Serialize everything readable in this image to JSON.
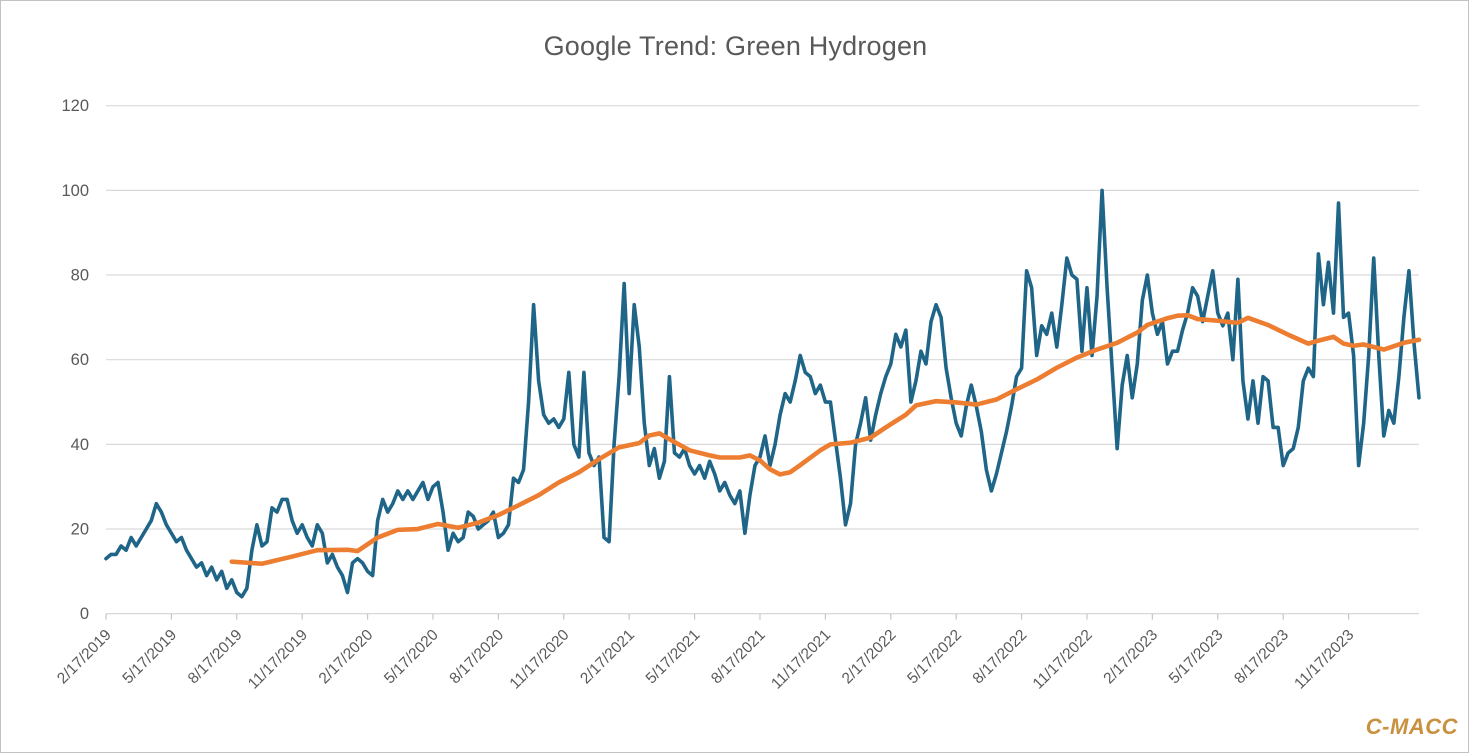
{
  "header": {
    "title": "Google Trend: Green Hydrogen"
  },
  "branding": {
    "logo_text": "C-MACC",
    "logo_color": "#c8913f"
  },
  "colors": {
    "title_text": "#595959",
    "axis_text": "#595959",
    "gridline": "#d9d9d9",
    "axis_line": "#d2d2d2",
    "tick_mark": "#c6c6c6",
    "weekly_line": "#1f6587",
    "trend_line": "#ed7d31",
    "frame_border": "#c2c2c2"
  },
  "chart_data": {
    "type": "line",
    "title": "Google Trend: Green Hydrogen",
    "xlabel": "",
    "ylabel": "",
    "ylim": [
      0,
      120
    ],
    "y_ticks": [
      0,
      20,
      40,
      60,
      80,
      100,
      120
    ],
    "grid": "horizontal",
    "legend": "none",
    "x_unit": "weeks",
    "x_tick_every_weeks": 13,
    "x_tick_labels": [
      "2/17/2019",
      "5/17/2019",
      "8/17/2019",
      "11/17/2019",
      "2/17/2020",
      "5/17/2020",
      "8/17/2020",
      "11/17/2020",
      "2/17/2021",
      "5/17/2021",
      "8/17/2021",
      "11/17/2021",
      "2/17/2022",
      "5/17/2022",
      "8/17/2022",
      "11/17/2022",
      "2/17/2023",
      "5/17/2023",
      "8/17/2023",
      "11/17/2023"
    ],
    "x_tick_label_rotation_deg": -45,
    "series": [
      {
        "name": "weekly_search_interest",
        "color": "#1f6587",
        "width": 3.6,
        "values": [
          13,
          14,
          14,
          16,
          15,
          18,
          16,
          18,
          20,
          22,
          26,
          24,
          21,
          19,
          17,
          18,
          15,
          13,
          11,
          12,
          9,
          11,
          8,
          10,
          6,
          8,
          5,
          4,
          6,
          15,
          21,
          16,
          17,
          25,
          24,
          27,
          27,
          22,
          19,
          21,
          18,
          16,
          21,
          19,
          12,
          14,
          11,
          9,
          5,
          12,
          13,
          12,
          10,
          9,
          22,
          27,
          24,
          26,
          29,
          27,
          29,
          27,
          29,
          31,
          27,
          30,
          31,
          24,
          15,
          19,
          17,
          18,
          24,
          23,
          20,
          21,
          22,
          24,
          18,
          19,
          21,
          32,
          31,
          34,
          50,
          73,
          55,
          47,
          45,
          46,
          44,
          46,
          57,
          40,
          37,
          57,
          38,
          35,
          37,
          18,
          17,
          40,
          56,
          78,
          52,
          73,
          63,
          45,
          35,
          39,
          32,
          36,
          56,
          38,
          37,
          39,
          35,
          33,
          35,
          32,
          36,
          33,
          29,
          31,
          28,
          26,
          29,
          19,
          28,
          35,
          37,
          42,
          35,
          40,
          47,
          52,
          50,
          55,
          61,
          57,
          56,
          52,
          54,
          50,
          50,
          41,
          32,
          21,
          26,
          40,
          45,
          51,
          41,
          47,
          52,
          56,
          59,
          66,
          63,
          67,
          50,
          55,
          62,
          59,
          69,
          73,
          70,
          58,
          51,
          45,
          42,
          49,
          54,
          49,
          43,
          34,
          29,
          33,
          38,
          43,
          49,
          56,
          58,
          81,
          77,
          61,
          68,
          66,
          71,
          63,
          73,
          84,
          80,
          79,
          62,
          77,
          61,
          75,
          100,
          77,
          58,
          39,
          54,
          61,
          51,
          59,
          74,
          80,
          71,
          66,
          69,
          59,
          62,
          62,
          67,
          71,
          77,
          75,
          69,
          75,
          81,
          71,
          68,
          71,
          60,
          79,
          55,
          46,
          55,
          45,
          56,
          55,
          44,
          44,
          35,
          38,
          39,
          44,
          55,
          58,
          56,
          85,
          73,
          83,
          71,
          97,
          70,
          71,
          61,
          35,
          45,
          61,
          84,
          61,
          42,
          48,
          45,
          56,
          70,
          81,
          64,
          51
        ]
      },
      {
        "name": "smoothed_trend_moving_average",
        "color": "#ed7d31",
        "width": 4.6,
        "points": [
          [
            25,
            12.3
          ],
          [
            31,
            11.8
          ],
          [
            37,
            13.5
          ],
          [
            42,
            15
          ],
          [
            48,
            15.1
          ],
          [
            50,
            14.8
          ],
          [
            54,
            18
          ],
          [
            58,
            19.8
          ],
          [
            62,
            20
          ],
          [
            66,
            21.2
          ],
          [
            70,
            20.3
          ],
          [
            74,
            21.5
          ],
          [
            78,
            23.3
          ],
          [
            82,
            25.6
          ],
          [
            86,
            28
          ],
          [
            90,
            31
          ],
          [
            94,
            33.4
          ],
          [
            98,
            36.5
          ],
          [
            102,
            39.3
          ],
          [
            106,
            40.3
          ],
          [
            108,
            42.1
          ],
          [
            110,
            42.6
          ],
          [
            112,
            41.2
          ],
          [
            116,
            38.6
          ],
          [
            120,
            37.4
          ],
          [
            122,
            36.9
          ],
          [
            126,
            36.9
          ],
          [
            128,
            37.4
          ],
          [
            130,
            36.2
          ],
          [
            132,
            34.1
          ],
          [
            134,
            32.9
          ],
          [
            136,
            33.4
          ],
          [
            138,
            35.1
          ],
          [
            142,
            38.6
          ],
          [
            144,
            40
          ],
          [
            148,
            40.4
          ],
          [
            152,
            41.6
          ],
          [
            155,
            44
          ],
          [
            159,
            47
          ],
          [
            161,
            49.2
          ],
          [
            165,
            50.2
          ],
          [
            169,
            49.9
          ],
          [
            173,
            49.4
          ],
          [
            177,
            50.6
          ],
          [
            181,
            53
          ],
          [
            185,
            55.3
          ],
          [
            189,
            58.1
          ],
          [
            193,
            60.5
          ],
          [
            197,
            62.4
          ],
          [
            201,
            64
          ],
          [
            205,
            66.4
          ],
          [
            207,
            68.2
          ],
          [
            211,
            69.8
          ],
          [
            213,
            70.4
          ],
          [
            215,
            70.5
          ],
          [
            217,
            69.6
          ],
          [
            221,
            69.2
          ],
          [
            225,
            68.7
          ],
          [
            227,
            69.9
          ],
          [
            231,
            68.2
          ],
          [
            235,
            65.9
          ],
          [
            239,
            63.8
          ],
          [
            241,
            64.5
          ],
          [
            244,
            65.4
          ],
          [
            246,
            63.8
          ],
          [
            248,
            63.3
          ],
          [
            250,
            63.6
          ],
          [
            254,
            62.4
          ],
          [
            256,
            63.2
          ],
          [
            258,
            64
          ],
          [
            261,
            64.7
          ]
        ]
      }
    ]
  }
}
